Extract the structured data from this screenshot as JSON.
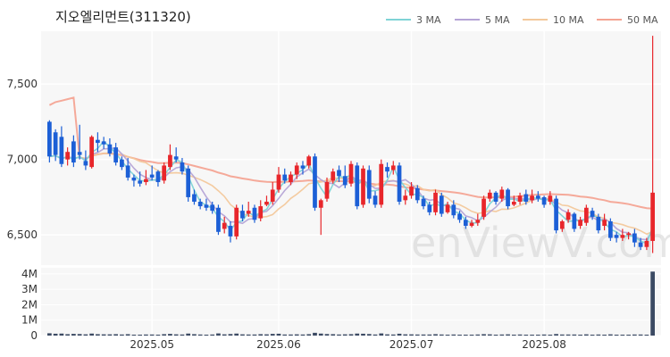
{
  "title": "지오엘리먼트(311320)",
  "watermark": "enViewV.com",
  "colors": {
    "up": "#e8262b",
    "down": "#1c5fd6",
    "ma3": "#7fd3d6",
    "ma5": "#b5a4d6",
    "ma10": "#f3c89b",
    "ma50": "#f4a493",
    "panel_bg": "#f7f7f7",
    "grid": "#ffffff",
    "volume": "#3b4a63"
  },
  "chart_data": {
    "type": "candlestick",
    "price_axis": {
      "ylim": [
        6300,
        7850
      ],
      "ticks": [
        "6,500",
        "7,000",
        "7,500"
      ],
      "tick_values": [
        6500,
        7000,
        7500
      ]
    },
    "volume_axis": {
      "ylim": [
        0,
        4400000
      ],
      "ticks": [
        "0",
        "1M",
        "2M",
        "3M",
        "4M"
      ],
      "tick_values": [
        0,
        1000000,
        2000000,
        3000000,
        4000000
      ]
    },
    "x_labels": [
      {
        "label": "2025.05",
        "index": 17
      },
      {
        "label": "2025.06",
        "index": 38
      },
      {
        "label": "2025.07",
        "index": 60
      },
      {
        "label": "2025.08",
        "index": 82
      }
    ],
    "legend": [
      "3 MA",
      "5 MA",
      "10 MA",
      "50 MA"
    ],
    "candles": [
      [
        7250,
        7020,
        7260,
        6980
      ],
      [
        7180,
        7030,
        7200,
        6990
      ],
      [
        7150,
        6970,
        7220,
        6950
      ],
      [
        7000,
        7050,
        7080,
        6960
      ],
      [
        7120,
        6980,
        7160,
        6950
      ],
      [
        7050,
        7030,
        7230,
        7000
      ],
      [
        6990,
        6960,
        7060,
        6930
      ],
      [
        6950,
        7150,
        7160,
        6940
      ],
      [
        7130,
        7110,
        7180,
        7050
      ],
      [
        7120,
        7100,
        7150,
        7070
      ],
      [
        7100,
        7040,
        7140,
        7020
      ],
      [
        7080,
        6980,
        7110,
        6960
      ],
      [
        7000,
        6950,
        7020,
        6930
      ],
      [
        6960,
        6880,
        7010,
        6860
      ],
      [
        6880,
        6860,
        6900,
        6820
      ],
      [
        6860,
        6840,
        6920,
        6820
      ],
      [
        6850,
        6870,
        6930,
        6830
      ],
      [
        6900,
        6880,
        6960,
        6860
      ],
      [
        6920,
        6850,
        6930,
        6820
      ],
      [
        6860,
        6960,
        6980,
        6840
      ],
      [
        6950,
        7030,
        7100,
        6930
      ],
      [
        7020,
        7000,
        7080,
        6980
      ],
      [
        6980,
        6920,
        7010,
        6900
      ],
      [
        6940,
        6750,
        6960,
        6720
      ],
      [
        6770,
        6720,
        6800,
        6700
      ],
      [
        6720,
        6690,
        6740,
        6670
      ],
      [
        6700,
        6680,
        6740,
        6660
      ],
      [
        6700,
        6660,
        6720,
        6640
      ],
      [
        6680,
        6520,
        6700,
        6500
      ],
      [
        6540,
        6580,
        6620,
        6510
      ],
      [
        6560,
        6490,
        6590,
        6450
      ],
      [
        6490,
        6680,
        6700,
        6470
      ],
      [
        6660,
        6610,
        6700,
        6590
      ],
      [
        6640,
        6660,
        6720,
        6620
      ],
      [
        6680,
        6600,
        6700,
        6580
      ],
      [
        6610,
        6690,
        6730,
        6590
      ],
      [
        6700,
        6720,
        6760,
        6690
      ],
      [
        6720,
        6800,
        6850,
        6700
      ],
      [
        6800,
        6900,
        6950,
        6780
      ],
      [
        6900,
        6860,
        6940,
        6840
      ],
      [
        6850,
        6900,
        6920,
        6830
      ],
      [
        6900,
        6960,
        6980,
        6870
      ],
      [
        6960,
        6940,
        6990,
        6900
      ],
      [
        6960,
        7020,
        7030,
        6940
      ],
      [
        7020,
        6680,
        7040,
        6660
      ],
      [
        6680,
        6730,
        6740,
        6500
      ],
      [
        6740,
        6850,
        6880,
        6720
      ],
      [
        6860,
        6920,
        6940,
        6840
      ],
      [
        6930,
        6890,
        6960,
        6850
      ],
      [
        6890,
        6830,
        6960,
        6810
      ],
      [
        6840,
        6970,
        6990,
        6820
      ],
      [
        6960,
        6690,
        6980,
        6670
      ],
      [
        6700,
        6940,
        6960,
        6680
      ],
      [
        6930,
        6740,
        6960,
        6710
      ],
      [
        6760,
        6700,
        6790,
        6680
      ],
      [
        6700,
        6970,
        7000,
        6680
      ],
      [
        6950,
        6920,
        6980,
        6880
      ],
      [
        6930,
        6960,
        6990,
        6900
      ],
      [
        6960,
        6720,
        6980,
        6700
      ],
      [
        6730,
        6760,
        6800,
        6700
      ],
      [
        6760,
        6820,
        6850,
        6740
      ],
      [
        6810,
        6730,
        6830,
        6710
      ],
      [
        6740,
        6690,
        6760,
        6670
      ],
      [
        6700,
        6650,
        6720,
        6630
      ],
      [
        6650,
        6780,
        6800,
        6630
      ],
      [
        6760,
        6640,
        6780,
        6620
      ],
      [
        6650,
        6700,
        6720,
        6640
      ],
      [
        6700,
        6630,
        6730,
        6610
      ],
      [
        6640,
        6600,
        6660,
        6580
      ],
      [
        6600,
        6560,
        6620,
        6540
      ],
      [
        6560,
        6580,
        6600,
        6550
      ],
      [
        6580,
        6600,
        6640,
        6560
      ],
      [
        6620,
        6740,
        6760,
        6600
      ],
      [
        6740,
        6780,
        6800,
        6720
      ],
      [
        6780,
        6720,
        6790,
        6700
      ],
      [
        6740,
        6800,
        6820,
        6720
      ],
      [
        6800,
        6690,
        6810,
        6670
      ],
      [
        6700,
        6720,
        6760,
        6690
      ],
      [
        6720,
        6760,
        6780,
        6700
      ],
      [
        6770,
        6720,
        6800,
        6700
      ],
      [
        6730,
        6760,
        6800,
        6710
      ],
      [
        6760,
        6740,
        6790,
        6720
      ],
      [
        6750,
        6700,
        6760,
        6680
      ],
      [
        6720,
        6760,
        6790,
        6700
      ],
      [
        6740,
        6530,
        6760,
        6510
      ],
      [
        6540,
        6590,
        6600,
        6520
      ],
      [
        6600,
        6650,
        6670,
        6580
      ],
      [
        6640,
        6540,
        6650,
        6520
      ],
      [
        6560,
        6600,
        6620,
        6540
      ],
      [
        6580,
        6680,
        6700,
        6560
      ],
      [
        6660,
        6620,
        6680,
        6600
      ],
      [
        6620,
        6530,
        6640,
        6510
      ],
      [
        6560,
        6600,
        6640,
        6530
      ],
      [
        6590,
        6480,
        6610,
        6460
      ],
      [
        6500,
        6480,
        6520,
        6450
      ],
      [
        6480,
        6500,
        6540,
        6460
      ],
      [
        6500,
        6510,
        6520,
        6470
      ],
      [
        6510,
        6450,
        6540,
        6420
      ],
      [
        6450,
        6420,
        6480,
        6400
      ],
      [
        6420,
        6460,
        6480,
        6400
      ],
      [
        6460,
        6780,
        7820,
        6380
      ]
    ],
    "volumes": [
      150000,
      120000,
      130000,
      90000,
      110000,
      100000,
      80000,
      130000,
      90000,
      80000,
      80000,
      90000,
      70000,
      90000,
      60000,
      60000,
      70000,
      70000,
      60000,
      90000,
      110000,
      80000,
      70000,
      130000,
      90000,
      70000,
      60000,
      70000,
      140000,
      80000,
      100000,
      130000,
      80000,
      70000,
      70000,
      90000,
      80000,
      110000,
      120000,
      70000,
      70000,
      80000,
      70000,
      90000,
      180000,
      130000,
      100000,
      90000,
      70000,
      80000,
      90000,
      130000,
      120000,
      100000,
      70000,
      140000,
      80000,
      70000,
      120000,
      80000,
      80000,
      70000,
      70000,
      70000,
      90000,
      70000,
      60000,
      70000,
      60000,
      60000,
      60000,
      70000,
      90000,
      80000,
      60000,
      70000,
      80000,
      60000,
      70000,
      60000,
      60000,
      60000,
      70000,
      60000,
      100000,
      70000,
      70000,
      70000,
      60000,
      80000,
      60000,
      70000,
      60000,
      80000,
      60000,
      60000,
      60000,
      70000,
      70000,
      60000,
      4150000
    ]
  }
}
